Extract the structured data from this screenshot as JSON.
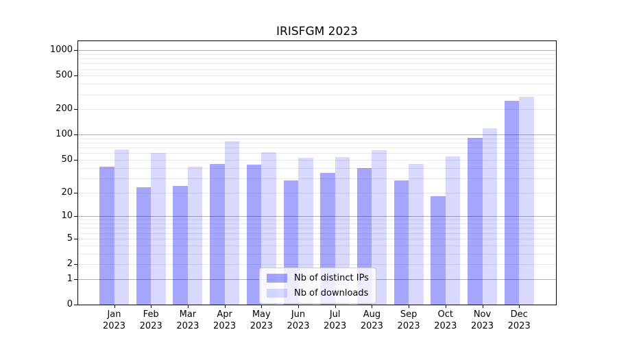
{
  "figure": {
    "title": "IRISFGM 2023"
  },
  "chart_data": {
    "type": "bar",
    "title": "IRISFGM 2023",
    "categories": [
      "Jan 2023",
      "Feb 2023",
      "Mar 2023",
      "Apr 2023",
      "May 2023",
      "Jun 2023",
      "Jul 2023",
      "Aug 2023",
      "Sep 2023",
      "Oct 2023",
      "Nov 2023",
      "Dec 2023"
    ],
    "series": [
      {
        "name": "Nb of distinct IPs",
        "color": "rgba(0,0,255,0.35)",
        "values": [
          41,
          23,
          24,
          45,
          44,
          28,
          35,
          40,
          28,
          18,
          92,
          250
        ]
      },
      {
        "name": "Nb of downloads",
        "color": "rgba(0,0,255,0.15)",
        "values": [
          66,
          61,
          41,
          84,
          62,
          53,
          54,
          65,
          45,
          55,
          120,
          280
        ]
      }
    ],
    "yscale": "log10(value+1)",
    "y_ticks": [
      0,
      1,
      2,
      5,
      10,
      20,
      50,
      100,
      200,
      500,
      1000
    ],
    "ylim": [
      0,
      1280
    ],
    "xlabel": "",
    "ylabel": "",
    "grid": {
      "horizontal_major_at": [
        1,
        10,
        100,
        1000
      ],
      "horizontal_minor": "2-9 per decade",
      "major_color": "#b0b0b0",
      "minor_color": "#e9e9e9"
    },
    "legend_position": "inside lower-center"
  }
}
